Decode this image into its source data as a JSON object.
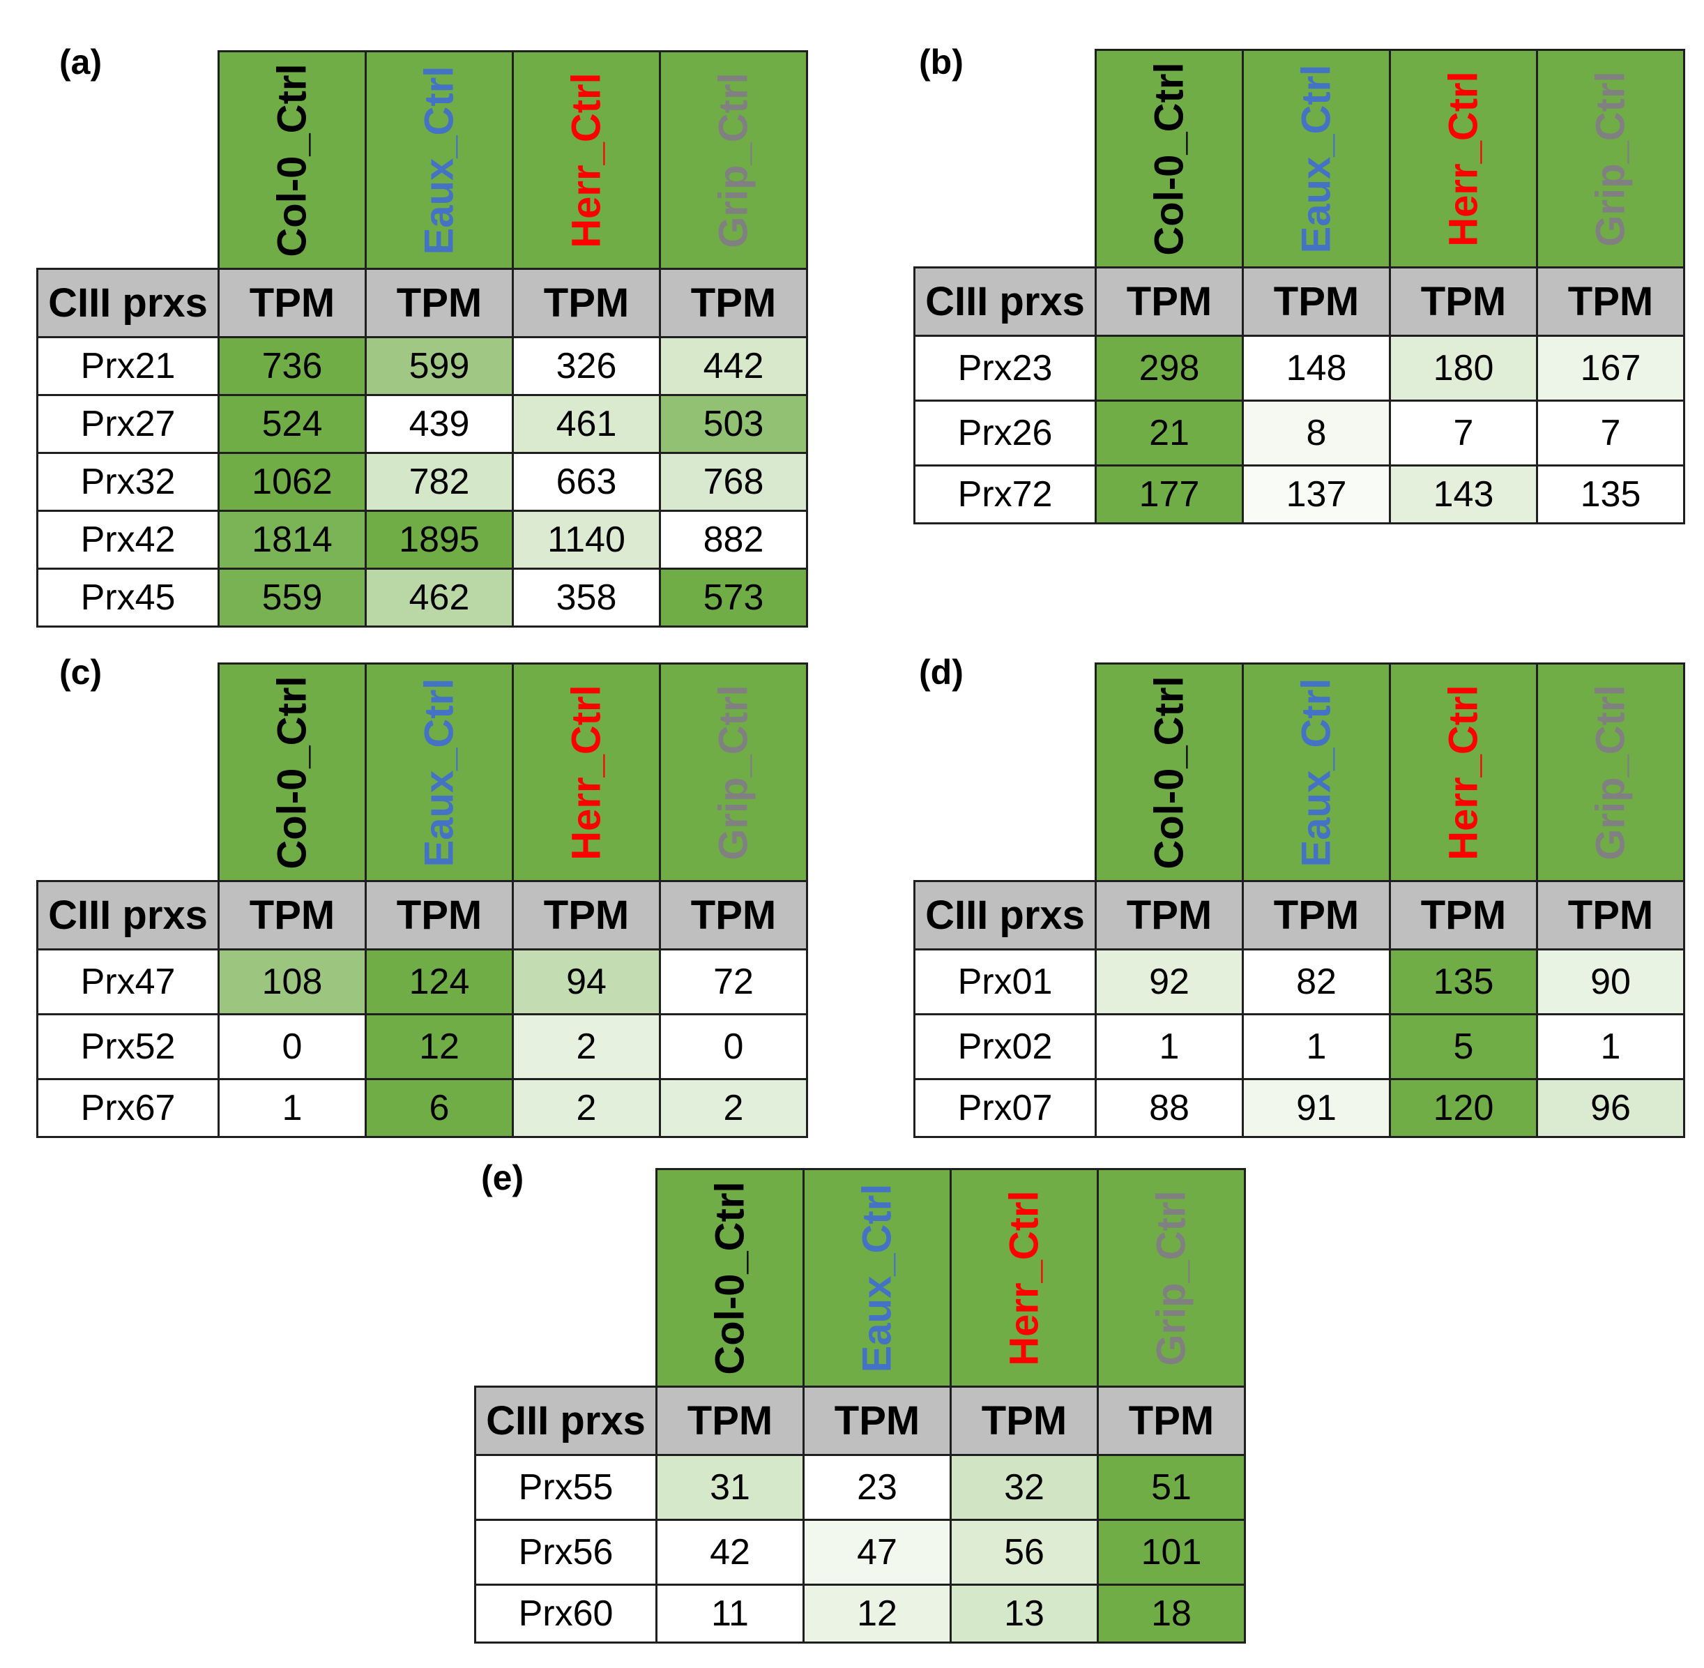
{
  "columns": [
    {
      "label": "Col-0_Ctrl",
      "color": "#000000"
    },
    {
      "label": "Eaux_Ctrl",
      "color": "#4472c4"
    },
    {
      "label": "Herr_Ctrl",
      "color": "#ff0000"
    },
    {
      "label": "Grip_Ctrl",
      "color": "#808080"
    }
  ],
  "row_header_label": "CIII prxs",
  "unit_label": "TPM",
  "header_bg": "#70ad47",
  "subheader_bg": "#bfbfbf",
  "panels": [
    {
      "label": "(a)",
      "rows": [
        {
          "name": "Prx21",
          "values": [
            "736",
            "599",
            "326",
            "442"
          ]
        },
        {
          "name": "Prx27",
          "values": [
            "524",
            "439",
            "461",
            "503"
          ]
        },
        {
          "name": "Prx32",
          "values": [
            "1062",
            "782",
            "663",
            "768"
          ]
        },
        {
          "name": "Prx42",
          "values": [
            "1814",
            "1895",
            "1140",
            "882"
          ]
        },
        {
          "name": "Prx45",
          "values": [
            "559",
            "462",
            "358",
            "573"
          ]
        }
      ]
    },
    {
      "label": "(b)",
      "rows": [
        {
          "name": "Prx23",
          "values": [
            "298",
            "148",
            "180",
            "167"
          ]
        },
        {
          "name": "Prx26",
          "values": [
            "21",
            "8",
            "7",
            "7"
          ]
        },
        {
          "name": "Prx72",
          "values": [
            "177",
            "137",
            "143",
            "135"
          ]
        }
      ]
    },
    {
      "label": "(c)",
      "rows": [
        {
          "name": "Prx47",
          "values": [
            "108",
            "124",
            "94",
            "72"
          ]
        },
        {
          "name": "Prx52",
          "values": [
            "0",
            "12",
            "2",
            "0"
          ]
        },
        {
          "name": "Prx67",
          "values": [
            "1",
            "6",
            "2",
            "2"
          ]
        }
      ]
    },
    {
      "label": "(d)",
      "rows": [
        {
          "name": "Prx01",
          "values": [
            "92",
            "82",
            "135",
            "90"
          ]
        },
        {
          "name": "Prx02",
          "values": [
            "1",
            "1",
            "5",
            "1"
          ]
        },
        {
          "name": "Prx07",
          "values": [
            "88",
            "91",
            "120",
            "96"
          ]
        }
      ]
    },
    {
      "label": "(e)",
      "rows": [
        {
          "name": "Prx55",
          "values": [
            "31",
            "23",
            "32",
            "51"
          ]
        },
        {
          "name": "Prx56",
          "values": [
            "42",
            "47",
            "56",
            "101"
          ]
        },
        {
          "name": "Prx60",
          "values": [
            "11",
            "12",
            "13",
            "18"
          ]
        }
      ]
    }
  ]
}
